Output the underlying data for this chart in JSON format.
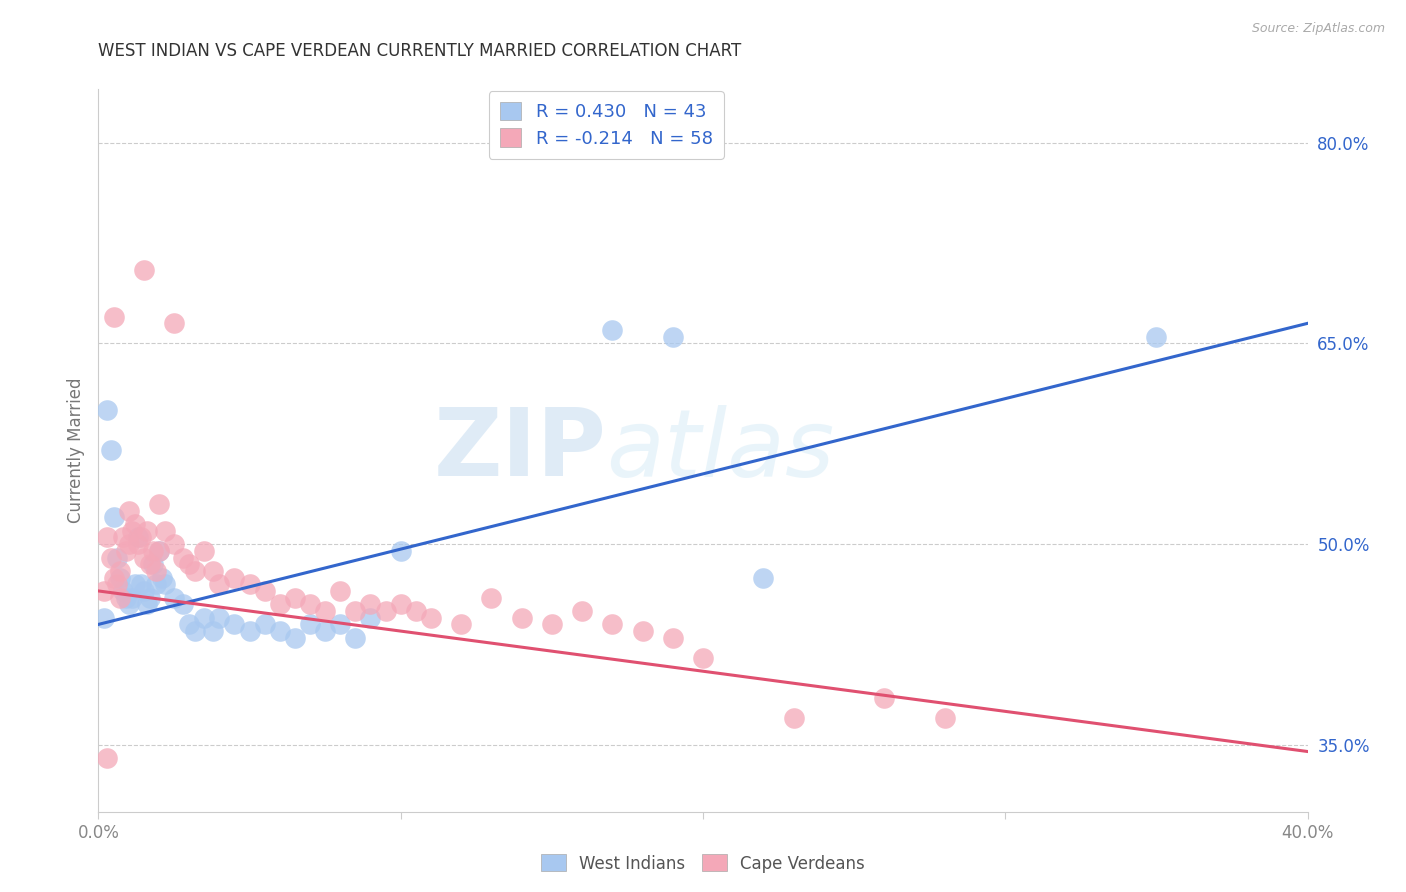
{
  "title": "WEST INDIAN VS CAPE VERDEAN CURRENTLY MARRIED CORRELATION CHART",
  "source": "Source: ZipAtlas.com",
  "ylabel": "Currently Married",
  "xlim": [
    0.0,
    40.0
  ],
  "ylim": [
    30.0,
    84.0
  ],
  "yticks": [
    35.0,
    50.0,
    65.0,
    80.0
  ],
  "ytick_labels": [
    "35.0%",
    "50.0%",
    "65.0%",
    "80.0%"
  ],
  "xtick_labels_show": [
    "0.0%",
    "40.0%"
  ],
  "blue_R": 0.43,
  "blue_N": 43,
  "pink_R": -0.214,
  "pink_N": 58,
  "blue_color": "#A8C8F0",
  "pink_color": "#F4A8B8",
  "blue_line_color": "#3366CC",
  "pink_line_color": "#E05070",
  "blue_line_y0": 44.0,
  "blue_line_y1": 66.5,
  "pink_line_y0": 46.5,
  "pink_line_y1": 34.5,
  "blue_scatter": [
    [
      0.2,
      44.5
    ],
    [
      0.3,
      60.0
    ],
    [
      0.4,
      57.0
    ],
    [
      0.5,
      52.0
    ],
    [
      0.6,
      49.0
    ],
    [
      0.7,
      47.5
    ],
    [
      0.8,
      46.5
    ],
    [
      0.9,
      46.0
    ],
    [
      1.0,
      45.5
    ],
    [
      1.1,
      46.0
    ],
    [
      1.2,
      47.0
    ],
    [
      1.3,
      50.5
    ],
    [
      1.4,
      47.0
    ],
    [
      1.5,
      46.5
    ],
    [
      1.6,
      45.5
    ],
    [
      1.7,
      46.0
    ],
    [
      1.8,
      48.5
    ],
    [
      1.9,
      47.0
    ],
    [
      2.0,
      49.5
    ],
    [
      2.1,
      47.5
    ],
    [
      2.2,
      47.0
    ],
    [
      2.5,
      46.0
    ],
    [
      2.8,
      45.5
    ],
    [
      3.0,
      44.0
    ],
    [
      3.2,
      43.5
    ],
    [
      3.5,
      44.5
    ],
    [
      3.8,
      43.5
    ],
    [
      4.0,
      44.5
    ],
    [
      4.5,
      44.0
    ],
    [
      5.0,
      43.5
    ],
    [
      5.5,
      44.0
    ],
    [
      6.0,
      43.5
    ],
    [
      6.5,
      43.0
    ],
    [
      7.0,
      44.0
    ],
    [
      7.5,
      43.5
    ],
    [
      8.0,
      44.0
    ],
    [
      8.5,
      43.0
    ],
    [
      9.0,
      44.5
    ],
    [
      10.0,
      49.5
    ],
    [
      17.0,
      66.0
    ],
    [
      19.0,
      65.5
    ],
    [
      22.0,
      47.5
    ],
    [
      35.0,
      65.5
    ]
  ],
  "pink_scatter": [
    [
      0.2,
      46.5
    ],
    [
      0.3,
      50.5
    ],
    [
      0.4,
      49.0
    ],
    [
      0.5,
      47.5
    ],
    [
      0.6,
      47.0
    ],
    [
      0.7,
      48.0
    ],
    [
      0.8,
      50.5
    ],
    [
      0.9,
      49.5
    ],
    [
      1.0,
      52.5
    ],
    [
      1.0,
      50.0
    ],
    [
      1.1,
      51.0
    ],
    [
      1.2,
      51.5
    ],
    [
      1.3,
      50.0
    ],
    [
      1.4,
      50.5
    ],
    [
      1.5,
      49.0
    ],
    [
      1.6,
      51.0
    ],
    [
      1.7,
      48.5
    ],
    [
      1.8,
      49.5
    ],
    [
      1.9,
      48.0
    ],
    [
      2.0,
      49.5
    ],
    [
      2.0,
      53.0
    ],
    [
      2.2,
      51.0
    ],
    [
      2.5,
      50.0
    ],
    [
      2.8,
      49.0
    ],
    [
      3.0,
      48.5
    ],
    [
      3.2,
      48.0
    ],
    [
      3.5,
      49.5
    ],
    [
      3.8,
      48.0
    ],
    [
      4.0,
      47.0
    ],
    [
      4.5,
      47.5
    ],
    [
      5.0,
      47.0
    ],
    [
      5.5,
      46.5
    ],
    [
      6.0,
      45.5
    ],
    [
      6.5,
      46.0
    ],
    [
      7.0,
      45.5
    ],
    [
      7.5,
      45.0
    ],
    [
      8.0,
      46.5
    ],
    [
      8.5,
      45.0
    ],
    [
      9.0,
      45.5
    ],
    [
      9.5,
      45.0
    ],
    [
      10.0,
      45.5
    ],
    [
      10.5,
      45.0
    ],
    [
      11.0,
      44.5
    ],
    [
      12.0,
      44.0
    ],
    [
      13.0,
      46.0
    ],
    [
      14.0,
      44.5
    ],
    [
      15.0,
      44.0
    ],
    [
      16.0,
      45.0
    ],
    [
      17.0,
      44.0
    ],
    [
      18.0,
      43.5
    ],
    [
      19.0,
      43.0
    ],
    [
      20.0,
      41.5
    ],
    [
      0.5,
      67.0
    ],
    [
      1.5,
      70.5
    ],
    [
      2.5,
      66.5
    ],
    [
      23.0,
      37.0
    ],
    [
      26.0,
      38.5
    ],
    [
      28.0,
      37.0
    ],
    [
      0.3,
      34.0
    ],
    [
      0.7,
      46.0
    ]
  ],
  "watermark_zip": "ZIP",
  "watermark_atlas": "atlas",
  "background_color": "#FFFFFF",
  "grid_color": "#CCCCCC"
}
